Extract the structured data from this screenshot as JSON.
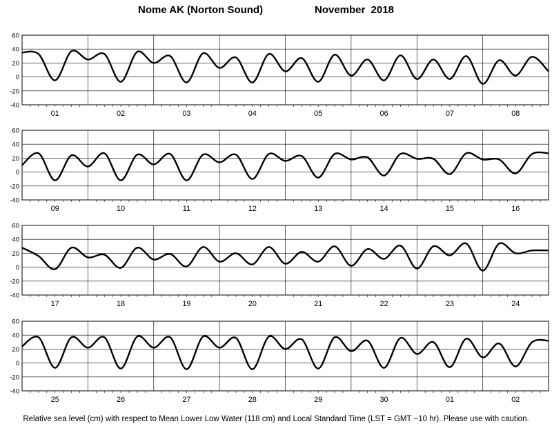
{
  "header": {
    "station": "Nome AK (Norton Sound)",
    "period": "November 2018"
  },
  "footer": {
    "note": "Relative sea level (cm) with respect to Mean Lower Low Water (118 cm) and Local Standard Time (LST = GMT −10 hr). Please use with caution."
  },
  "chart_data": {
    "type": "line",
    "title": "Nome AK (Norton Sound)   November 2018",
    "ylabel": "Relative sea level (cm)",
    "ylim": [
      -40,
      60
    ],
    "yticks": [
      -40,
      -20,
      0,
      20,
      40,
      60
    ],
    "grid": true,
    "x_unit": "day of month",
    "panels": [
      {
        "days": [
          "01",
          "02",
          "03",
          "04",
          "05",
          "06",
          "07",
          "08"
        ],
        "x": [
          0,
          0.25,
          0.5,
          0.75,
          1,
          1.25,
          1.5,
          1.75,
          2,
          2.25,
          2.5,
          2.75,
          3,
          3.25,
          3.5,
          3.75,
          4,
          4.25,
          4.5,
          4.75,
          5,
          5.25,
          5.5,
          5.75,
          6,
          6.25,
          6.5,
          6.75,
          7,
          7.25,
          7.5,
          7.75,
          8
        ],
        "values": [
          35,
          33,
          -5,
          37,
          25,
          33,
          -7,
          36,
          20,
          30,
          -8,
          34,
          13,
          28,
          -8,
          33,
          8,
          27,
          -7,
          32,
          2,
          25,
          -5,
          31,
          -3,
          25,
          -3,
          30,
          -10,
          24,
          2,
          29,
          8
        ]
      },
      {
        "days": [
          "09",
          "10",
          "11",
          "12",
          "13",
          "14",
          "15",
          "16"
        ],
        "x": [
          0,
          0.25,
          0.5,
          0.75,
          1,
          1.25,
          1.5,
          1.75,
          2,
          2.25,
          2.5,
          2.75,
          3,
          3.25,
          3.5,
          3.75,
          4,
          4.25,
          4.5,
          4.75,
          5,
          5.25,
          5.5,
          5.75,
          6,
          6.25,
          6.5,
          6.75,
          7,
          7.25,
          7.5,
          7.75,
          8
        ],
        "values": [
          10,
          27,
          -12,
          24,
          8,
          27,
          -12,
          25,
          11,
          26,
          -12,
          25,
          14,
          25,
          -10,
          26,
          16,
          23,
          -8,
          26,
          18,
          21,
          -5,
          26,
          19,
          19,
          -3,
          27,
          18,
          18,
          -2,
          26,
          27
        ]
      },
      {
        "days": [
          "17",
          "18",
          "19",
          "20",
          "21",
          "22",
          "23",
          "24"
        ],
        "x": [
          0,
          0.25,
          0.5,
          0.75,
          1,
          1.25,
          1.5,
          1.75,
          2,
          2.25,
          2.5,
          2.75,
          3,
          3.25,
          3.5,
          3.75,
          4,
          4.25,
          4.5,
          4.75,
          5,
          5.25,
          5.5,
          5.75,
          6,
          6.25,
          6.5,
          6.75,
          7,
          7.25,
          7.5,
          7.75,
          8
        ],
        "values": [
          28,
          16,
          -3,
          28,
          14,
          18,
          -1,
          28,
          11,
          19,
          1,
          29,
          8,
          20,
          4,
          29,
          5,
          22,
          8,
          30,
          2,
          26,
          12,
          31,
          -2,
          30,
          17,
          34,
          -5,
          34,
          20,
          24,
          24
        ]
      },
      {
        "days": [
          "25",
          "26",
          "27",
          "28",
          "29",
          "30",
          "01",
          "02"
        ],
        "x": [
          0,
          0.25,
          0.5,
          0.75,
          1,
          1.25,
          1.5,
          1.75,
          2,
          2.25,
          2.5,
          2.75,
          3,
          3.25,
          3.5,
          3.75,
          4,
          4.25,
          4.5,
          4.75,
          5,
          5.25,
          5.5,
          5.75,
          6,
          6.25,
          6.5,
          6.75,
          7,
          7.25,
          7.5,
          7.75,
          8
        ],
        "values": [
          24,
          37,
          -7,
          37,
          22,
          37,
          -8,
          38,
          22,
          37,
          -9,
          38,
          22,
          36,
          -9,
          38,
          20,
          34,
          -8,
          37,
          17,
          32,
          -7,
          36,
          13,
          30,
          -6,
          35,
          8,
          28,
          -5,
          30,
          32
        ]
      }
    ]
  }
}
